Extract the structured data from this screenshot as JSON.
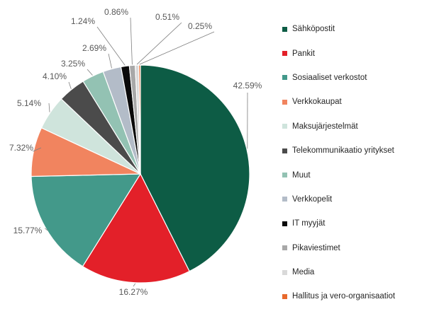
{
  "chart_data": {
    "type": "pie",
    "start_angle_deg": 0,
    "direction": "clockwise",
    "legend_position": "right",
    "slices": [
      {
        "label": "Sähköpostit",
        "value": 42.59,
        "value_label": "42.59%",
        "color": "#0d5c45"
      },
      {
        "label": "Pankit",
        "value": 16.27,
        "value_label": "16.27%",
        "color": "#e32029"
      },
      {
        "label": "Sosiaaliset verkostot",
        "value": 15.77,
        "value_label": "15.77%",
        "color": "#43998a"
      },
      {
        "label": "Verkkokaupat",
        "value": 7.32,
        "value_label": "7.32%",
        "color": "#f1845f"
      },
      {
        "label": "Maksujärjestelmät",
        "value": 5.14,
        "value_label": "5.14%",
        "color": "#cfe4dc"
      },
      {
        "label": "Telekommunikaatio yritykset",
        "value": 4.1,
        "value_label": "4.10%",
        "color": "#4b4b4b"
      },
      {
        "label": "Muut",
        "value": 3.25,
        "value_label": "3.25%",
        "color": "#93c2b3"
      },
      {
        "label": "Verkkopelit",
        "value": 2.69,
        "value_label": "2.69%",
        "color": "#b3bcc8"
      },
      {
        "label": "IT myyjät",
        "value": 1.24,
        "value_label": "1.24%",
        "color": "#0a0a0a"
      },
      {
        "label": "Pikaviestimet",
        "value": 0.86,
        "value_label": "0.86%",
        "color": "#a8a8a8"
      },
      {
        "label": "Media",
        "value": 0.51,
        "value_label": "0.51%",
        "color": "#d9d9d9"
      },
      {
        "label": "Hallitus ja vero-organisaatiot",
        "value": 0.25,
        "value_label": "0.25%",
        "color": "#e8692c"
      }
    ]
  }
}
